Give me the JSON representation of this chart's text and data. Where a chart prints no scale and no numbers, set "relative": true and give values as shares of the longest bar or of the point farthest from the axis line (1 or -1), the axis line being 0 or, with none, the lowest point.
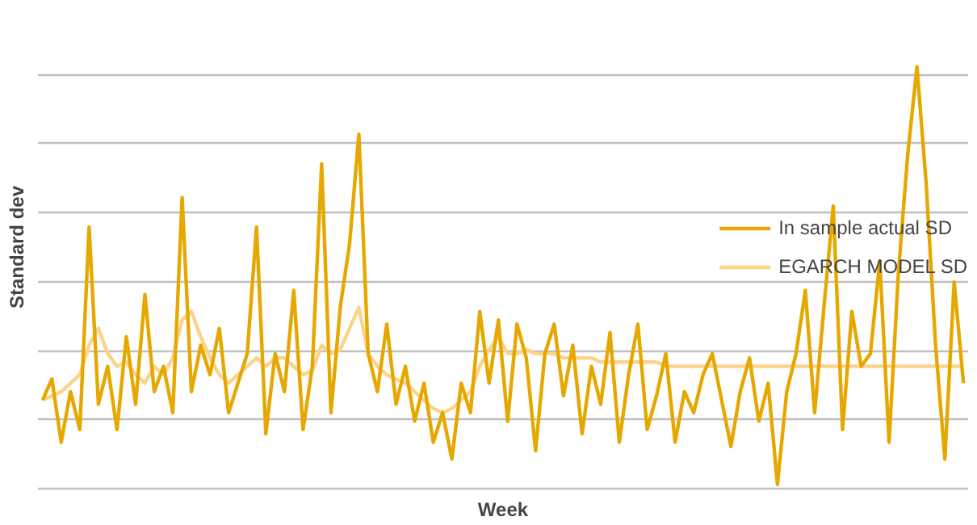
{
  "chart_data": {
    "type": "line",
    "relative": true,
    "xlabel": "Week",
    "ylabel": "Standard dev",
    "grid": "y",
    "legend": "right",
    "marker": "none",
    "line_style": "solid",
    "categories": [
      null,
      null,
      null,
      null,
      null,
      null,
      null,
      null,
      null,
      null,
      null,
      null,
      null,
      null,
      null,
      null,
      null,
      null,
      null,
      null,
      null,
      null,
      null,
      null,
      null,
      null,
      null,
      null,
      null,
      null,
      null,
      null,
      null,
      null,
      null,
      null,
      null,
      null,
      null,
      null,
      null,
      null,
      null,
      null,
      null,
      null,
      null,
      null,
      null,
      null,
      null,
      null,
      null,
      null,
      null,
      null,
      null,
      null,
      null,
      null,
      null,
      null,
      null,
      null,
      null,
      null,
      null,
      null,
      null,
      null,
      null,
      null,
      null,
      null,
      null,
      null,
      null,
      null,
      null,
      null,
      null,
      null,
      null,
      null,
      null,
      null,
      null,
      null,
      null,
      null,
      null,
      null,
      null,
      null,
      null,
      null,
      null,
      null,
      null,
      null
    ],
    "series": [
      {
        "name": "In sample actual SD",
        "color": "#e6a800",
        "values": [
          0.21,
          0.26,
          0.11,
          0.23,
          0.14,
          0.62,
          0.2,
          0.29,
          0.14,
          0.36,
          0.2,
          0.46,
          0.23,
          0.29,
          0.18,
          0.69,
          0.23,
          0.34,
          0.27,
          0.38,
          0.18,
          0.25,
          0.32,
          0.62,
          0.13,
          0.32,
          0.23,
          0.47,
          0.14,
          0.29,
          0.77,
          0.18,
          0.43,
          0.58,
          0.84,
          0.32,
          0.23,
          0.39,
          0.2,
          0.29,
          0.16,
          0.25,
          0.11,
          0.18,
          0.07,
          0.25,
          0.18,
          0.42,
          0.25,
          0.4,
          0.16,
          0.39,
          0.31,
          0.09,
          0.32,
          0.39,
          0.22,
          0.34,
          0.13,
          0.29,
          0.2,
          0.37,
          0.11,
          0.27,
          0.39,
          0.14,
          0.22,
          0.32,
          0.11,
          0.23,
          0.18,
          0.27,
          0.32,
          0.21,
          0.1,
          0.23,
          0.31,
          0.16,
          0.25,
          0.01,
          0.23,
          0.32,
          0.47,
          0.18,
          0.43,
          0.67,
          0.14,
          0.42,
          0.29,
          0.32,
          0.54,
          0.11,
          0.51,
          0.79,
          1,
          0.72,
          0.34,
          0.07,
          0.49,
          0.25
        ]
      },
      {
        "name": "EGARCH MODEL SD",
        "color": "#fdd28a",
        "values": [
          0.21,
          0.22,
          0.23,
          0.25,
          0.27,
          0.34,
          0.38,
          0.32,
          0.29,
          0.3,
          0.27,
          0.25,
          0.29,
          0.27,
          0.31,
          0.4,
          0.42,
          0.36,
          0.31,
          0.27,
          0.25,
          0.27,
          0.29,
          0.31,
          0.29,
          0.31,
          0.31,
          0.29,
          0.27,
          0.28,
          0.34,
          0.32,
          0.33,
          0.38,
          0.43,
          0.32,
          0.29,
          0.27,
          0.26,
          0.25,
          0.23,
          0.21,
          0.19,
          0.18,
          0.19,
          0.21,
          0.23,
          0.29,
          0.33,
          0.36,
          0.32,
          0.32,
          0.33,
          0.32,
          0.32,
          0.32,
          0.31,
          0.31,
          0.31,
          0.31,
          0.3,
          0.3,
          0.3,
          0.3,
          0.3,
          0.3,
          0.3,
          0.29,
          0.29,
          0.29,
          0.29,
          0.29,
          0.29,
          0.29,
          0.29,
          0.29,
          0.29,
          0.29,
          0.29,
          0.29,
          0.29,
          0.29,
          0.29,
          0.29,
          0.29,
          0.29,
          0.29,
          0.29,
          0.29,
          0.29,
          0.29,
          0.29,
          0.29,
          0.29,
          0.29,
          0.29,
          0.29,
          0.29,
          0.29,
          0.29
        ]
      }
    ]
  }
}
